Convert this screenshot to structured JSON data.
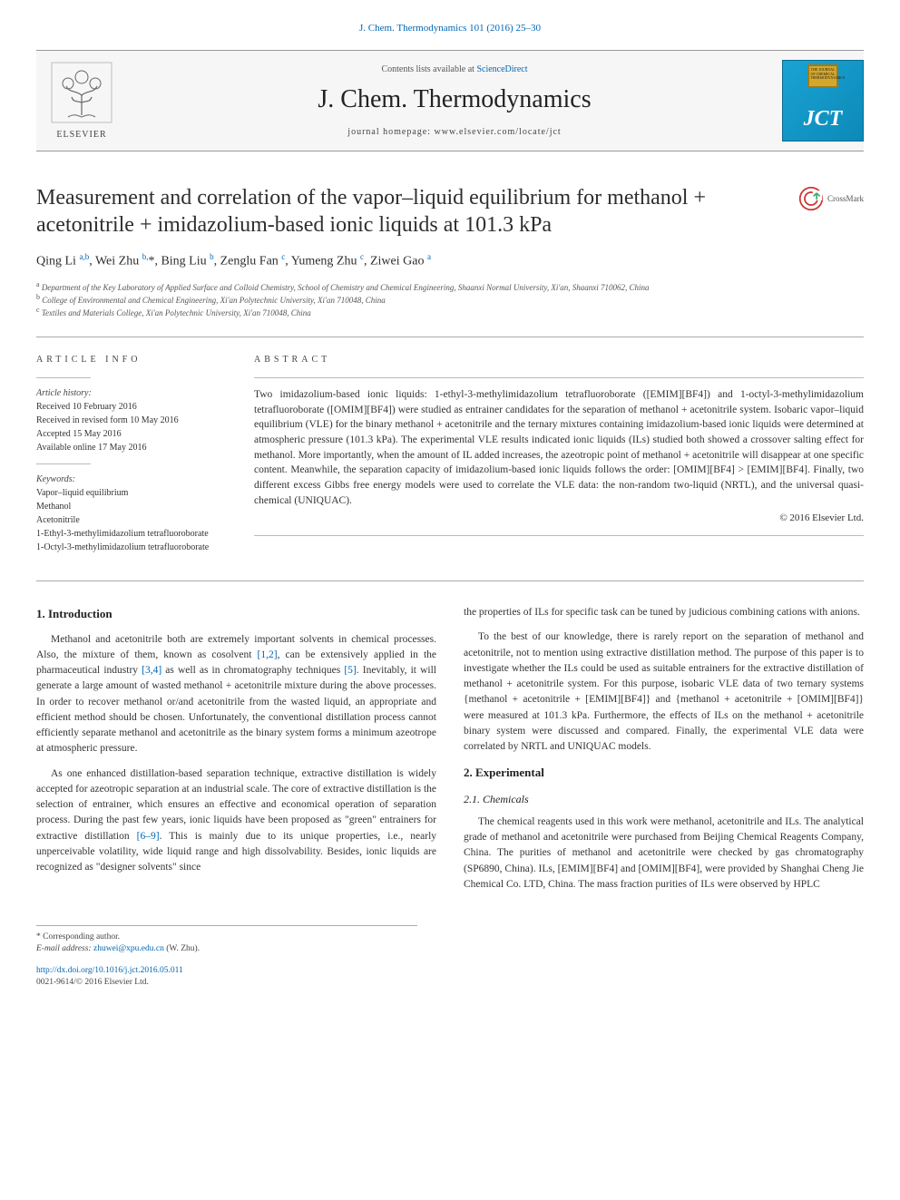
{
  "top_link": {
    "text": "J. Chem. Thermodynamics 101 (2016) 25–30"
  },
  "header": {
    "publisher": "ELSEVIER",
    "contents_prefix": "Contents lists available at ",
    "contents_link": "ScienceDirect",
    "journal_title": "J. Chem. Thermodynamics",
    "homepage_prefix": "journal homepage: ",
    "homepage_url": "www.elsevier.com/locate/jct",
    "jct_box_text": "THE JOURNAL OF CHEMICAL THERMODYNAMICS",
    "jct_logo_text": "JCT"
  },
  "crossmark_label": "CrossMark",
  "title": "Measurement and correlation of the vapor–liquid equilibrium for methanol + acetonitrile + imidazolium-based ionic liquids at 101.3 kPa",
  "authors_html": "Qing Li <sup>a,b</sup>, Wei Zhu <sup>b,</sup><span class='aff-star'>*</span>, Bing Liu <sup>b</sup>, Zenglu Fan <sup>c</sup>, Yumeng Zhu <sup>c</sup>, Ziwei Gao <sup>a</sup>",
  "affiliations": [
    {
      "sup": "a",
      "text": "Department of the Key Laboratory of Applied Surface and Colloid Chemistry, School of Chemistry and Chemical Engineering, Shaanxi Normal University, Xi'an, Shaanxi 710062, China"
    },
    {
      "sup": "b",
      "text": "College of Environmental and Chemical Engineering, Xi'an Polytechnic University, Xi'an 710048, China"
    },
    {
      "sup": "c",
      "text": "Textiles and Materials College, Xi'an Polytechnic University, Xi'an 710048, China"
    }
  ],
  "article_info": {
    "heading": "article info",
    "history_label": "Article history:",
    "history": [
      "Received 10 February 2016",
      "Received in revised form 10 May 2016",
      "Accepted 15 May 2016",
      "Available online 17 May 2016"
    ],
    "keywords_label": "Keywords:",
    "keywords": [
      "Vapor–liquid equilibrium",
      "Methanol",
      "Acetonitrile",
      "1-Ethyl-3-methylimidazolium tetrafluoroborate",
      "1-Octyl-3-methylimidazolium tetrafluoroborate"
    ]
  },
  "abstract": {
    "heading": "abstract",
    "text": "Two imidazolium-based ionic liquids: 1-ethyl-3-methylimidazolium tetrafluoroborate ([EMIM][BF4]) and 1-octyl-3-methylimidazolium tetrafluoroborate ([OMIM][BF4]) were studied as entrainer candidates for the separation of methanol + acetonitrile system. Isobaric vapor–liquid equilibrium (VLE) for the binary methanol + acetonitrile and the ternary mixtures containing imidazolium-based ionic liquids were determined at atmospheric pressure (101.3 kPa). The experimental VLE results indicated ionic liquids (ILs) studied both showed a crossover salting effect for methanol. More importantly, when the amount of IL added increases, the azeotropic point of methanol + acetonitrile will disappear at one specific content. Meanwhile, the separation capacity of imidazolium-based ionic liquids follows the order: [OMIM][BF4] > [EMIM][BF4]. Finally, two different excess Gibbs free energy models were used to correlate the VLE data: the non-random two-liquid (NRTL), and the universal quasi-chemical (UNIQUAC).",
    "copyright": "© 2016 Elsevier Ltd."
  },
  "body": {
    "left": {
      "h_intro": "1. Introduction",
      "p1_pre": "Methanol and acetonitrile both are extremely important solvents in chemical processes. Also, the mixture of them, known as cosolvent ",
      "ref12": "[1,2]",
      "p1_mid1": ", can be extensively applied in the pharmaceutical industry ",
      "ref34": "[3,4]",
      "p1_mid2": " as well as in chromatography techniques ",
      "ref5": "[5]",
      "p1_post": ". Inevitably, it will generate a large amount of wasted methanol + acetonitrile mixture during the above processes. In order to recover methanol or/and acetonitrile from the wasted liquid, an appropriate and efficient method should be chosen. Unfortunately, the conventional distillation process cannot efficiently separate methanol and acetonitrile as the binary system forms a minimum azeotrope at atmospheric pressure.",
      "p2_pre": "As one enhanced distillation-based separation technique, extractive distillation is widely accepted for azeotropic separation at an industrial scale. The core of extractive distillation is the selection of entrainer, which ensures an effective and economical operation of separation process. During the past few years, ionic liquids have been proposed as \"green\" entrainers for extractive distillation ",
      "ref69": "[6–9]",
      "p2_post": ". This is mainly due to its unique properties, i.e., nearly unperceivable volatility, wide liquid range and high dissolvability. Besides, ionic liquids are recognized as \"designer solvents\" since"
    },
    "right": {
      "p1": "the properties of ILs for specific task can be tuned by judicious combining cations with anions.",
      "p2": "To the best of our knowledge, there is rarely report on the separation of methanol and acetonitrile, not to mention using extractive distillation method. The purpose of this paper is to investigate whether the ILs could be used as suitable entrainers for the extractive distillation of methanol + acetonitrile system. For this purpose, isobaric VLE data of two ternary systems {methanol + acetonitrile + [EMIM][BF4]} and {methanol + acetonitrile + [OMIM][BF4]} were measured at 101.3 kPa. Furthermore, the effects of ILs on the methanol + acetonitrile binary system were discussed and compared. Finally, the experimental VLE data were correlated by NRTL and UNIQUAC models.",
      "h_exp": "2. Experimental",
      "h_chem": "2.1. Chemicals",
      "p3": "The chemical reagents used in this work were methanol, acetonitrile and ILs. The analytical grade of methanol and acetonitrile were purchased from Beijing Chemical Reagents Company, China. The purities of methanol and acetonitrile were checked by gas chromatography (SP6890, China). ILs, [EMIM][BF4] and [OMIM][BF4], were provided by Shanghai Cheng Jie Chemical Co. LTD, China. The mass fraction purities of ILs were observed by HPLC"
    }
  },
  "footnotes": {
    "corr": "* Corresponding author.",
    "email_label": "E-mail address: ",
    "email": "zhuwei@xpu.edu.cn",
    "email_person": " (W. Zhu)."
  },
  "doi": {
    "url": "http://dx.doi.org/10.1016/j.jct.2016.05.011",
    "issn_line": "0021-9614/© 2016 Elsevier Ltd."
  },
  "colors": {
    "link": "#0066b3",
    "border": "#aaaaaa",
    "jct_bg_from": "#1aa3d4",
    "jct_bg_to": "#0c8ab8",
    "jct_box": "#d4a72c"
  }
}
